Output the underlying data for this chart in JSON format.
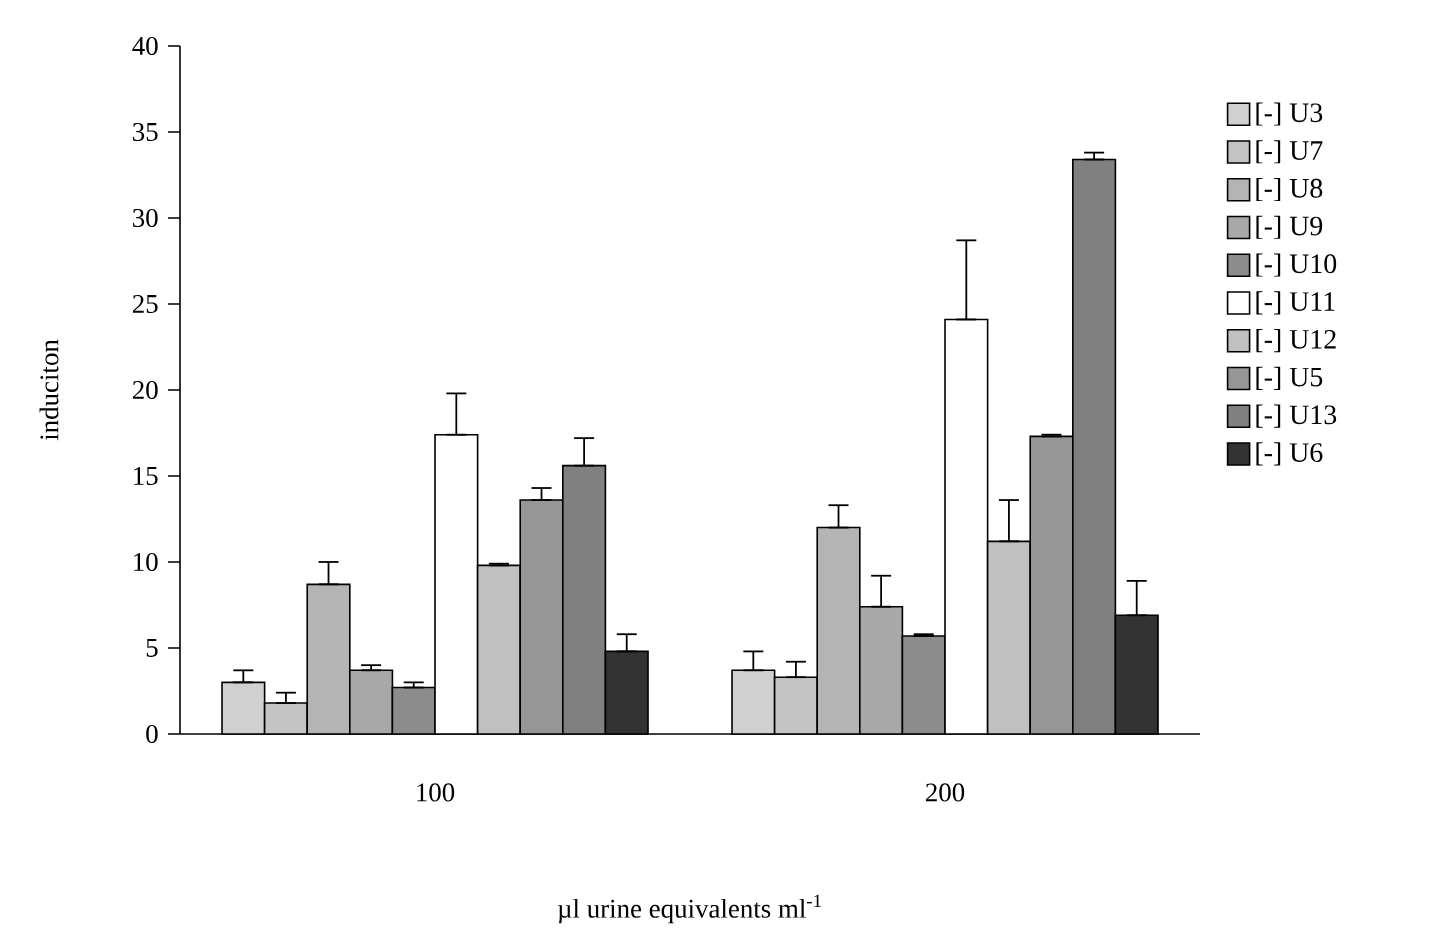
{
  "chart_data": {
    "type": "bar",
    "ylabel": "induciton",
    "xlabel": "µl urine equivalents ml$^{-1}$",
    "categories": [
      "100",
      "200"
    ],
    "ylim": [
      0,
      40
    ],
    "yticks": [
      0,
      5,
      10,
      15,
      20,
      25,
      30,
      35,
      40
    ],
    "grid": false,
    "legend": "right",
    "series": [
      {
        "name": "[-] U3",
        "color": "#d0d0d0",
        "values": [
          3.0,
          3.7
        ],
        "errors": [
          [
            3.0,
            3.7
          ],
          [
            3.7,
            4.8
          ]
        ]
      },
      {
        "name": "[-] U7",
        "color": "#c4c4c4",
        "values": [
          1.8,
          3.3
        ],
        "errors": [
          [
            1.8,
            2.4
          ],
          [
            3.3,
            4.2
          ]
        ]
      },
      {
        "name": "[-] U8",
        "color": "#b4b4b4",
        "values": [
          8.7,
          12.0
        ],
        "errors": [
          [
            8.7,
            10.0
          ],
          [
            12.0,
            13.3
          ]
        ]
      },
      {
        "name": "[-] U9",
        "color": "#a8a8a8",
        "values": [
          3.7,
          7.4
        ],
        "errors": [
          [
            3.7,
            4.0
          ],
          [
            7.4,
            9.2
          ]
        ]
      },
      {
        "name": "[-] U10",
        "color": "#8c8c8c",
        "values": [
          2.7,
          5.7
        ],
        "errors": [
          [
            2.7,
            3.0
          ],
          [
            5.7,
            5.8
          ]
        ]
      },
      {
        "name": "[-] U11",
        "color": "#ffffff",
        "values": [
          17.4,
          24.1
        ],
        "errors": [
          [
            17.4,
            19.8
          ],
          [
            24.1,
            28.7
          ]
        ]
      },
      {
        "name": "[-] U12",
        "color": "#c0c0c0",
        "values": [
          9.8,
          11.2
        ],
        "errors": [
          [
            9.8,
            9.9
          ],
          [
            11.2,
            13.6
          ]
        ]
      },
      {
        "name": "[-] U5",
        "color": "#969696",
        "values": [
          13.6,
          17.3
        ],
        "errors": [
          [
            13.6,
            14.3
          ],
          [
            17.3,
            17.4
          ]
        ]
      },
      {
        "name": "[-] U13",
        "color": "#808080",
        "values": [
          15.6,
          33.4
        ],
        "errors": [
          [
            15.6,
            17.2
          ],
          [
            33.4,
            33.8
          ]
        ]
      },
      {
        "name": "[-] U6",
        "color": "#333333",
        "values": [
          4.8,
          6.9
        ],
        "errors": [
          [
            4.8,
            5.8
          ],
          [
            6.9,
            8.9
          ]
        ]
      }
    ]
  }
}
